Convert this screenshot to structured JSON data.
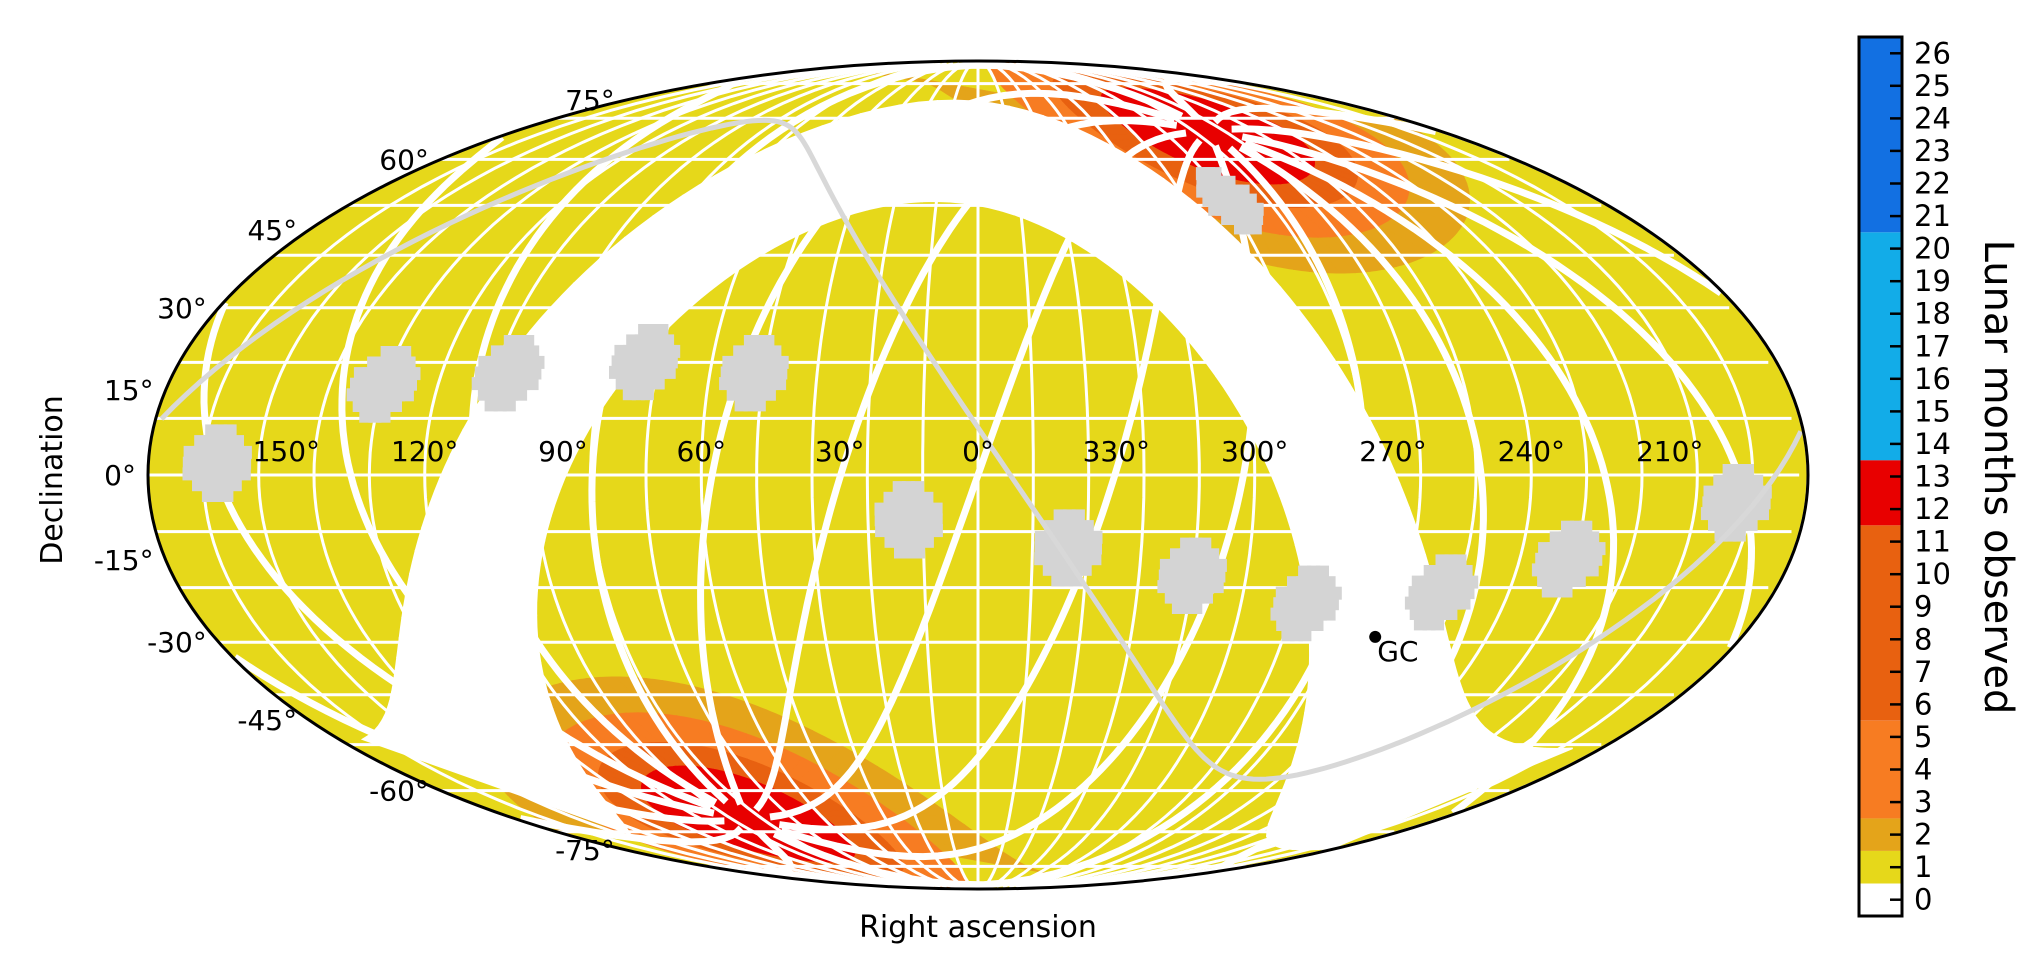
{
  "chart_data": {
    "type": "sky-map",
    "projection": "mollweide",
    "xlabel": "Right ascension",
    "ylabel": "Declination",
    "ra_tick_labels": [
      {
        "ra": 150,
        "label": "150°"
      },
      {
        "ra": 120,
        "label": "120°"
      },
      {
        "ra": 90,
        "label": "90°"
      },
      {
        "ra": 60,
        "label": "60°"
      },
      {
        "ra": 30,
        "label": "30°"
      },
      {
        "ra": 0,
        "label": "0°"
      },
      {
        "ra": 330,
        "label": "330°"
      },
      {
        "ra": 300,
        "label": "300°"
      },
      {
        "ra": 270,
        "label": "270°"
      },
      {
        "ra": 240,
        "label": "240°"
      },
      {
        "ra": 210,
        "label": "210°"
      }
    ],
    "dec_tick_labels": [
      {
        "dec": 75,
        "label": "75°"
      },
      {
        "dec": 60,
        "label": "60°"
      },
      {
        "dec": 45,
        "label": "45°"
      },
      {
        "dec": 30,
        "label": "30°"
      },
      {
        "dec": 15,
        "label": "15°"
      },
      {
        "dec": 0,
        "label": "0°"
      },
      {
        "dec": -15,
        "label": "-15°"
      },
      {
        "dec": -30,
        "label": "-30°"
      },
      {
        "dec": -45,
        "label": "-45°"
      },
      {
        "dec": -60,
        "label": "-60°"
      },
      {
        "dec": -75,
        "label": "-75°"
      }
    ],
    "annotation": {
      "label": "GC",
      "ra": 266.4,
      "dec": -29.0
    },
    "ecliptic_poles": [
      {
        "ra": 270,
        "dec": 66.6,
        "months": 13
      },
      {
        "ra": 90,
        "dec": -66.6,
        "months": 13
      }
    ],
    "colorbar": {
      "title": "Lunar months observed",
      "range": [
        0,
        26
      ],
      "tick_labels": [
        "0",
        "1",
        "2",
        "3",
        "4",
        "5",
        "6",
        "7",
        "8",
        "9",
        "10",
        "11",
        "12",
        "13",
        "14",
        "15",
        "16",
        "17",
        "18",
        "19",
        "20",
        "21",
        "22",
        "23",
        "24",
        "25",
        "26"
      ],
      "bins": [
        {
          "from": 0,
          "to": 1,
          "color": "#ffffff"
        },
        {
          "from": 1,
          "to": 2,
          "color": "#e6d81a"
        },
        {
          "from": 2,
          "to": 3,
          "color": "#e4a41a"
        },
        {
          "from": 3,
          "to": 6,
          "color": "#f77c22"
        },
        {
          "from": 6,
          "to": 12,
          "color": "#e86110"
        },
        {
          "from": 12,
          "to": 14,
          "color": "#e80000"
        },
        {
          "from": 14,
          "to": 21,
          "color": "#12ace8"
        },
        {
          "from": 21,
          "to": 27,
          "color": "#1270e2"
        }
      ]
    },
    "colors": {
      "background_coverage": "#e6d81a",
      "galactic_plane": "#ffffff",
      "k2_fields": "#d4d4d4",
      "footprint_line": "#d8d8d8"
    }
  }
}
